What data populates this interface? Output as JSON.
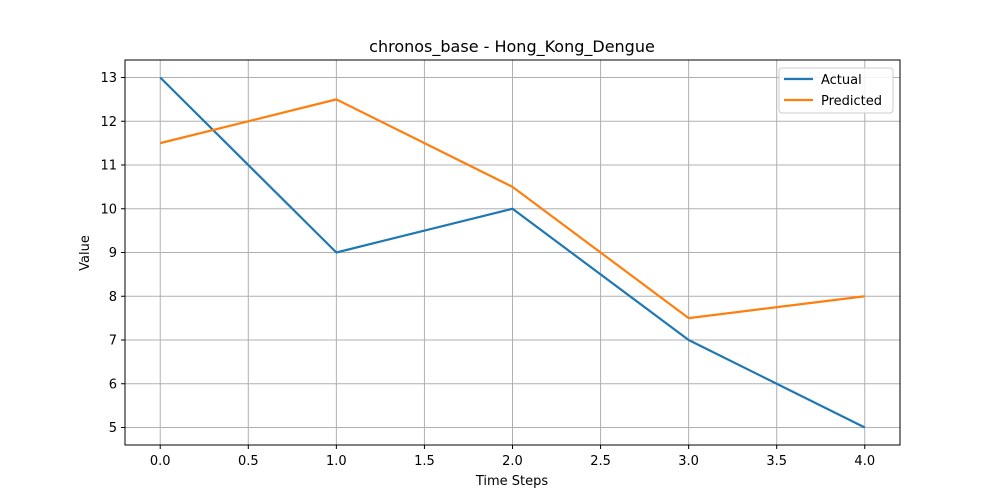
{
  "chart_data": {
    "type": "line",
    "title": "chronos_base - Hong_Kong_Dengue",
    "xlabel": "Time Steps",
    "ylabel": "Value",
    "x": [
      0,
      1,
      2,
      3,
      4
    ],
    "xlim": [
      -0.2,
      4.2
    ],
    "ylim": [
      4.6,
      13.4
    ],
    "xticks": [
      0,
      0.5,
      1,
      1.5,
      2,
      2.5,
      3,
      3.5,
      4
    ],
    "xtick_labels": [
      "0.0",
      "0.5",
      "1.0",
      "1.5",
      "2.0",
      "2.5",
      "3.0",
      "3.5",
      "4.0"
    ],
    "yticks": [
      5,
      6,
      7,
      8,
      9,
      10,
      11,
      12,
      13
    ],
    "ytick_labels": [
      "5",
      "6",
      "7",
      "8",
      "9",
      "10",
      "11",
      "12",
      "13"
    ],
    "grid": true,
    "legend_position": "top-right",
    "series": [
      {
        "name": "Actual",
        "color": "#1f77b4",
        "values": [
          13,
          9,
          10,
          7,
          5
        ]
      },
      {
        "name": "Predicted",
        "color": "#ff7f0e",
        "values": [
          11.5,
          12.5,
          10.5,
          7.5,
          8
        ]
      }
    ]
  }
}
